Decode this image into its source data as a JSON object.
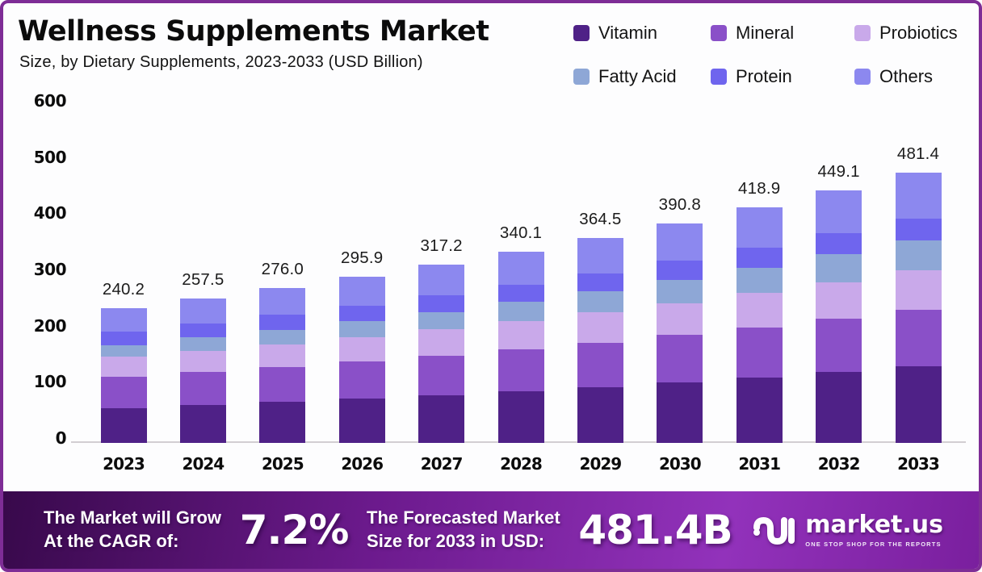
{
  "header": {
    "title": "Wellness Supplements Market",
    "subtitle": "Size, by Dietary Supplements, 2023-2033 (USD Billion)"
  },
  "chart_data": {
    "type": "bar",
    "stacked": true,
    "title": "Wellness Supplements Market",
    "subtitle": "Size, by Dietary Supplements, 2023-2033 (USD Billion)",
    "unit": "USD Billion",
    "categories": [
      "2023",
      "2024",
      "2025",
      "2026",
      "2027",
      "2028",
      "2029",
      "2030",
      "2031",
      "2032",
      "2033"
    ],
    "series": [
      {
        "name": "Vitamin",
        "color": "#4f2187",
        "values": [
          62.0,
          67.1,
          72.5,
          78.5,
          84.9,
          91.8,
          99.3,
          107.4,
          116.1,
          125.6,
          135.8
        ]
      },
      {
        "name": "Mineral",
        "color": "#8a50c8",
        "values": [
          55.0,
          58.5,
          62.2,
          66.1,
          70.2,
          74.7,
          79.3,
          84.3,
          89.6,
          95.2,
          101.1
        ]
      },
      {
        "name": "Probiotics",
        "color": "#c9a9ea",
        "values": [
          36.0,
          38.5,
          41.1,
          43.9,
          46.9,
          50.2,
          53.6,
          57.3,
          61.2,
          65.3,
          69.8
        ]
      },
      {
        "name": "Fatty Acid",
        "color": "#8ea7d6",
        "values": [
          21.0,
          23.2,
          25.5,
          28.1,
          30.9,
          33.9,
          37.3,
          40.9,
          44.9,
          49.2,
          53.9
        ]
      },
      {
        "name": "Protein",
        "color": "#6f65ee",
        "values": [
          24.0,
          25.3,
          26.6,
          27.9,
          29.3,
          30.8,
          32.3,
          33.9,
          35.5,
          37.2,
          39.0
        ]
      },
      {
        "name": "Others",
        "color": "#8c88ef",
        "values": [
          42.2,
          44.9,
          48.1,
          51.4,
          55.0,
          58.7,
          62.7,
          67.0,
          71.6,
          76.6,
          81.8
        ]
      }
    ],
    "totals": [
      "240.2",
      "257.5",
      "276.0",
      "295.9",
      "317.2",
      "340.1",
      "364.5",
      "390.8",
      "418.9",
      "449.1",
      "481.4"
    ],
    "ylim": [
      0,
      600
    ],
    "yticks": [
      0,
      100,
      200,
      300,
      400,
      500,
      600
    ],
    "grid": false,
    "legend_position": "top-right"
  },
  "footer": {
    "cagr_label_line1": "The Market will Grow",
    "cagr_label_line2": "At the CAGR of:",
    "cagr_value": "7.2%",
    "forecast_label_line1": "The Forecasted Market",
    "forecast_label_line2": "Size for 2033 in USD:",
    "forecast_value": "481.4B",
    "brand": "market.us",
    "brand_tagline": "ONE STOP SHOP FOR THE REPORTS"
  },
  "colors": {
    "frame_border": "#7e2d96",
    "banner_gradient": [
      "#38094b",
      "#6c1a8d",
      "#9232bb",
      "#7a1f9e"
    ],
    "axis_line": "#d2ced2",
    "text": "#111111"
  }
}
